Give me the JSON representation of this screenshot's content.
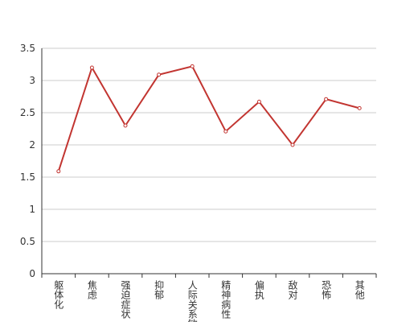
{
  "chart_data": {
    "type": "line",
    "categories": [
      "躯体化",
      "焦虑",
      "强迫症状",
      "抑郁",
      "人际关系敏感",
      "精神病性",
      "偏执",
      "敌对",
      "恐怖",
      "其他"
    ],
    "values": [
      1.59,
      3.2,
      2.3,
      3.09,
      3.22,
      2.21,
      2.67,
      2.0,
      2.71,
      2.57
    ],
    "color": "#c23531",
    "ylim": [
      0,
      3.5
    ],
    "yticks": [
      0,
      0.5,
      1,
      1.5,
      2,
      2.5,
      3,
      3.5
    ],
    "grid": true
  }
}
